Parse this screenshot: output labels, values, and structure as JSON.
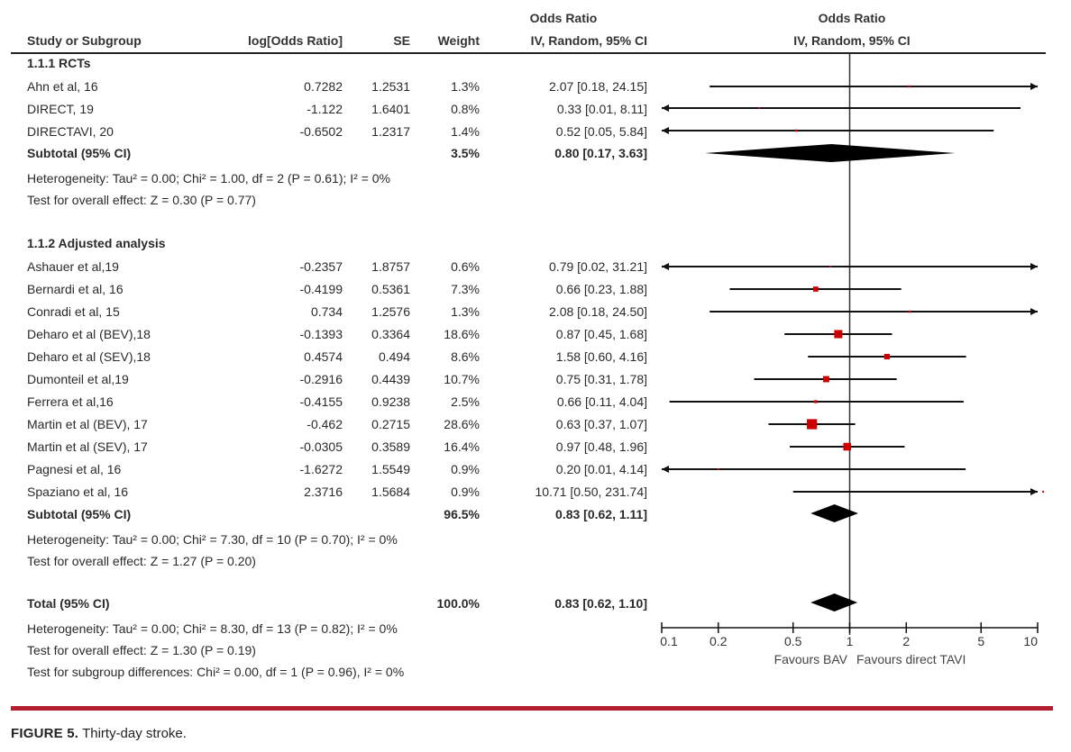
{
  "header": {
    "study_col": "Study or Subgroup",
    "logor_col": "log[Odds Ratio]",
    "se_col": "SE",
    "weight_col": "Weight",
    "or_col_line1": "Odds Ratio",
    "or_col_line2": "IV, Random, 95% CI",
    "plot_col_line1": "Odds Ratio",
    "plot_col_line2": "IV, Random, 95% CI"
  },
  "groups": [
    {
      "title": "1.1.1 RCTs",
      "studies": [
        {
          "name": "Ahn et al, 16",
          "logor": "0.7282",
          "se": "1.2531",
          "weight": "1.3%",
          "ci_text": "2.07 [0.18, 24.15]"
        },
        {
          "name": "DIRECT, 19",
          "logor": "-1.122",
          "se": "1.6401",
          "weight": "0.8%",
          "ci_text": "0.33 [0.01, 8.11]"
        },
        {
          "name": "DIRECTAVI, 20",
          "logor": "-0.6502",
          "se": "1.2317",
          "weight": "1.4%",
          "ci_text": "0.52 [0.05, 5.84]"
        }
      ],
      "subtotal": {
        "label": "Subtotal (95% CI)",
        "weight": "3.5%",
        "ci_text": "0.80 [0.17, 3.63]"
      },
      "heterogeneity": "Heterogeneity: Tau² = 0.00; Chi² = 1.00, df = 2 (P = 0.61); I² = 0%",
      "overall": "Test for overall effect: Z = 0.30 (P = 0.77)"
    },
    {
      "title": "1.1.2 Adjusted analysis",
      "studies": [
        {
          "name": "Ashauer et al,19",
          "logor": "-0.2357",
          "se": "1.8757",
          "weight": "0.6%",
          "ci_text": "0.79 [0.02, 31.21]"
        },
        {
          "name": "Bernardi et al, 16",
          "logor": "-0.4199",
          "se": "0.5361",
          "weight": "7.3%",
          "ci_text": "0.66 [0.23, 1.88]"
        },
        {
          "name": "Conradi et al, 15",
          "logor": "0.734",
          "se": "1.2576",
          "weight": "1.3%",
          "ci_text": "2.08 [0.18, 24.50]"
        },
        {
          "name": "Deharo et al (BEV),18",
          "logor": "-0.1393",
          "se": "0.3364",
          "weight": "18.6%",
          "ci_text": "0.87 [0.45, 1.68]"
        },
        {
          "name": "Deharo et al (SEV),18",
          "logor": "0.4574",
          "se": "0.494",
          "weight": "8.6%",
          "ci_text": "1.58 [0.60, 4.16]"
        },
        {
          "name": "Dumonteil et al,19",
          "logor": "-0.2916",
          "se": "0.4439",
          "weight": "10.7%",
          "ci_text": "0.75 [0.31, 1.78]"
        },
        {
          "name": "Ferrera et al,16",
          "logor": "-0.4155",
          "se": "0.9238",
          "weight": "2.5%",
          "ci_text": "0.66 [0.11, 4.04]"
        },
        {
          "name": "Martin et al (BEV), 17",
          "logor": "-0.462",
          "se": "0.2715",
          "weight": "28.6%",
          "ci_text": "0.63 [0.37, 1.07]"
        },
        {
          "name": "Martin et al (SEV), 17",
          "logor": "-0.0305",
          "se": "0.3589",
          "weight": "16.4%",
          "ci_text": "0.97 [0.48, 1.96]"
        },
        {
          "name": "Pagnesi et al, 16",
          "logor": "-1.6272",
          "se": "1.5549",
          "weight": "0.9%",
          "ci_text": "0.20 [0.01, 4.14]"
        },
        {
          "name": "Spaziano et al, 16",
          "logor": "2.3716",
          "se": "1.5684",
          "weight": "0.9%",
          "ci_text": "10.71 [0.50, 231.74]"
        }
      ],
      "subtotal": {
        "label": "Subtotal (95% CI)",
        "weight": "96.5%",
        "ci_text": "0.83 [0.62, 1.11]"
      },
      "heterogeneity": "Heterogeneity: Tau² = 0.00; Chi² = 7.30, df = 10 (P = 0.70); I² = 0%",
      "overall": "Test for overall effect: Z = 1.27 (P = 0.20)"
    }
  ],
  "total": {
    "label": "Total (95% CI)",
    "weight": "100.0%",
    "ci_text": "0.83 [0.62, 1.10]",
    "heterogeneity": "Heterogeneity: Tau² = 0.00; Chi² = 8.30, df = 13 (P = 0.82); I² = 0%",
    "overall": "Test for overall effect: Z = 1.30 (P = 0.19)",
    "subgroup": "Test for subgroup differences: Chi² = 0.00, df = 1 (P = 0.96), I² = 0%"
  },
  "axis": {
    "favours_left": "Favours BAV",
    "favours_right": "Favours direct TAVI"
  },
  "caption": {
    "label": "FIGURE 5.",
    "text": "Thirty-day stroke."
  },
  "colors": {
    "square": "#cc0000",
    "diamond": "#000000",
    "rule": "#b31f2e"
  },
  "chart_data": {
    "type": "forest",
    "title": "Thirty-day stroke",
    "xlabel": "Odds Ratio (IV, Random, 95% CI)",
    "xscale": "log",
    "xlim": [
      0.1,
      10
    ],
    "ticks": [
      0.1,
      0.2,
      0.5,
      1,
      2,
      5,
      10
    ],
    "tick_labels": [
      "0.1",
      "0.2",
      "0.5",
      "1",
      "2",
      "5",
      "10"
    ],
    "rows": [
      {
        "kind": "study",
        "name": "Ahn et al, 16",
        "or": 2.07,
        "lo": 0.18,
        "hi": 24.15,
        "weight": 1.3
      },
      {
        "kind": "study",
        "name": "DIRECT, 19",
        "or": 0.33,
        "lo": 0.01,
        "hi": 8.11,
        "weight": 0.8
      },
      {
        "kind": "study",
        "name": "DIRECTAVI, 20",
        "or": 0.52,
        "lo": 0.05,
        "hi": 5.84,
        "weight": 1.4
      },
      {
        "kind": "subtotal",
        "name": "Subtotal RCTs",
        "or": 0.8,
        "lo": 0.17,
        "hi": 3.63,
        "weight": 3.5
      },
      {
        "kind": "study",
        "name": "Ashauer et al,19",
        "or": 0.79,
        "lo": 0.02,
        "hi": 31.21,
        "weight": 0.6
      },
      {
        "kind": "study",
        "name": "Bernardi et al, 16",
        "or": 0.66,
        "lo": 0.23,
        "hi": 1.88,
        "weight": 7.3
      },
      {
        "kind": "study",
        "name": "Conradi et al, 15",
        "or": 2.08,
        "lo": 0.18,
        "hi": 24.5,
        "weight": 1.3
      },
      {
        "kind": "study",
        "name": "Deharo et al (BEV),18",
        "or": 0.87,
        "lo": 0.45,
        "hi": 1.68,
        "weight": 18.6
      },
      {
        "kind": "study",
        "name": "Deharo et al (SEV),18",
        "or": 1.58,
        "lo": 0.6,
        "hi": 4.16,
        "weight": 8.6
      },
      {
        "kind": "study",
        "name": "Dumonteil et al,19",
        "or": 0.75,
        "lo": 0.31,
        "hi": 1.78,
        "weight": 10.7
      },
      {
        "kind": "study",
        "name": "Ferrera et al,16",
        "or": 0.66,
        "lo": 0.11,
        "hi": 4.04,
        "weight": 2.5
      },
      {
        "kind": "study",
        "name": "Martin et al (BEV), 17",
        "or": 0.63,
        "lo": 0.37,
        "hi": 1.07,
        "weight": 28.6
      },
      {
        "kind": "study",
        "name": "Martin et al (SEV), 17",
        "or": 0.97,
        "lo": 0.48,
        "hi": 1.96,
        "weight": 16.4
      },
      {
        "kind": "study",
        "name": "Pagnesi et al, 16",
        "or": 0.2,
        "lo": 0.01,
        "hi": 4.14,
        "weight": 0.9
      },
      {
        "kind": "study",
        "name": "Spaziano et al, 16",
        "or": 10.71,
        "lo": 0.5,
        "hi": 231.74,
        "weight": 0.9
      },
      {
        "kind": "subtotal",
        "name": "Subtotal Adjusted",
        "or": 0.83,
        "lo": 0.62,
        "hi": 1.11,
        "weight": 96.5
      },
      {
        "kind": "total",
        "name": "Total",
        "or": 0.83,
        "lo": 0.62,
        "hi": 1.1,
        "weight": 100.0
      }
    ]
  }
}
